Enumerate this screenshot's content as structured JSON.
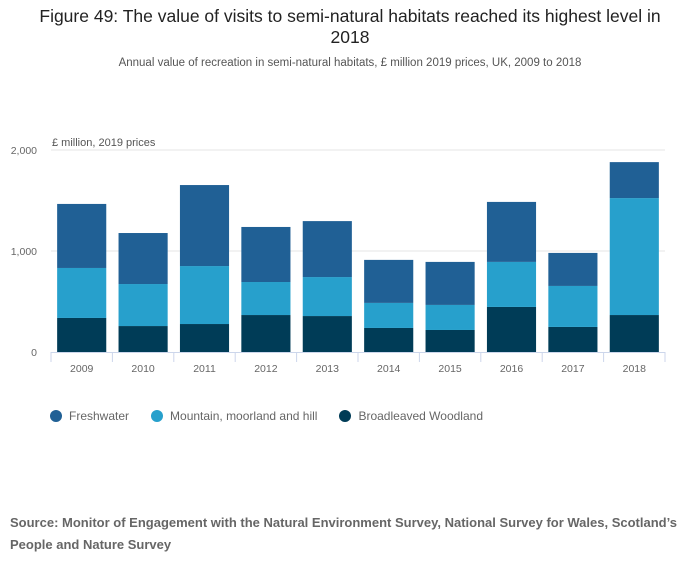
{
  "header": {
    "title": "Figure 49: The value of visits to semi-natural habitats reached its highest level in 2018",
    "subtitle": "Annual value of recreation in semi-natural habitats, £ million 2019 prices, UK, 2009 to 2018"
  },
  "source": "Source: Monitor of Engagement with the Natural Environment Survey, National Survey for Wales, Scotland’s People and Nature Survey",
  "chart_data": {
    "type": "bar",
    "stacked": true,
    "title": "Figure 49: The value of visits to semi-natural habitats reached its highest level in 2018",
    "subtitle": "Annual value of recreation in semi-natural habitats, £ million 2019 prices, UK, 2009 to 2018",
    "xlabel": "",
    "ylabel": "£ million, 2019 prices",
    "ylim": [
      0,
      2000
    ],
    "yticks": [
      0,
      1000,
      2000
    ],
    "ytick_labels": [
      "0",
      "1,000",
      "2,000"
    ],
    "grid": true,
    "legend_position": "bottom-left",
    "categories": [
      "2009",
      "2010",
      "2011",
      "2012",
      "2013",
      "2014",
      "2015",
      "2016",
      "2017",
      "2018"
    ],
    "series": [
      {
        "name": "Broadleaved Woodland",
        "color": "#003c57",
        "values": [
          337,
          257,
          277,
          366,
          356,
          238,
          218,
          446,
          248,
          366
        ]
      },
      {
        "name": "Mountain, moorland and hill",
        "color": "#27a0cc",
        "values": [
          495,
          416,
          574,
          327,
          386,
          248,
          248,
          446,
          406,
          1158
        ]
      },
      {
        "name": "Freshwater",
        "color": "#206095",
        "values": [
          634,
          505,
          802,
          545,
          554,
          426,
          426,
          594,
          327,
          356
        ]
      }
    ],
    "legend_order": [
      "Freshwater",
      "Mountain, moorland and hill",
      "Broadleaved Woodland"
    ]
  },
  "legend": [
    {
      "label": "Freshwater",
      "color": "#206095"
    },
    {
      "label": "Mountain, moorland and hill",
      "color": "#27a0cc"
    },
    {
      "label": "Broadleaved Woodland",
      "color": "#003c57"
    }
  ]
}
